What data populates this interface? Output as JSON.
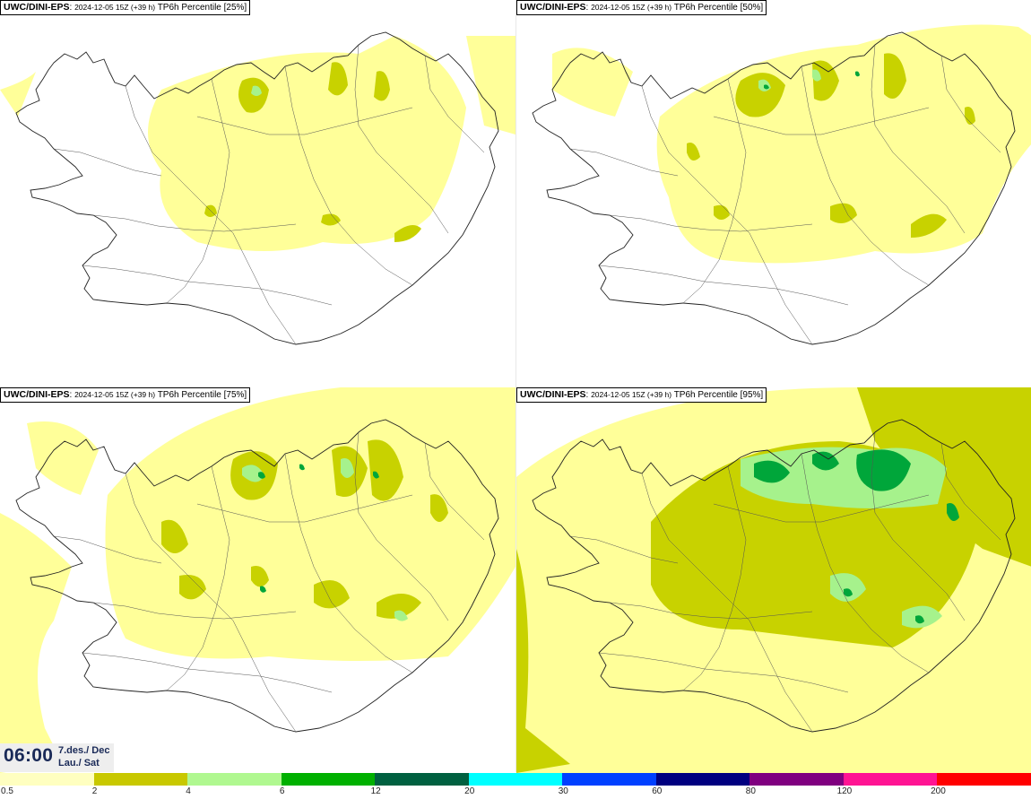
{
  "panels": [
    {
      "model": "UWC/DINI-EPS",
      "run": "2024-12-05 15Z (+39 h)",
      "field": "TP6h Percentile [25%]",
      "level": 1
    },
    {
      "model": "UWC/DINI-EPS",
      "run": "2024-12-05 15Z (+39 h)",
      "field": "TP6h Percentile [50%]",
      "level": 2
    },
    {
      "model": "UWC/DINI-EPS",
      "run": "2024-12-05 15Z (+39 h)",
      "field": "TP6h Percentile [75%]",
      "level": 3
    },
    {
      "model": "UWC/DINI-EPS",
      "run": "2024-12-05 15Z (+39 h)",
      "field": "TP6h Percentile [95%]",
      "level": 4
    }
  ],
  "time": {
    "clock": "06:00",
    "date_line1": "7.des./ Dec",
    "date_line2": "Lau./ Sat"
  },
  "colorbar": {
    "colors": [
      "#ffffc0",
      "#c8c800",
      "#b0f890",
      "#00b000",
      "#006040",
      "#00ffff",
      "#0040ff",
      "#000080",
      "#800080",
      "#ff1493",
      "#ff0000"
    ],
    "ticks": [
      "0.5",
      "2",
      "4",
      "6",
      "12",
      "20",
      "30",
      "60",
      "80",
      "120",
      "200"
    ]
  },
  "colors": {
    "light": "#ffff99",
    "mid": "#c8d200",
    "pale_green": "#a6f28c",
    "green": "#00a63a",
    "outline": "#222222"
  }
}
